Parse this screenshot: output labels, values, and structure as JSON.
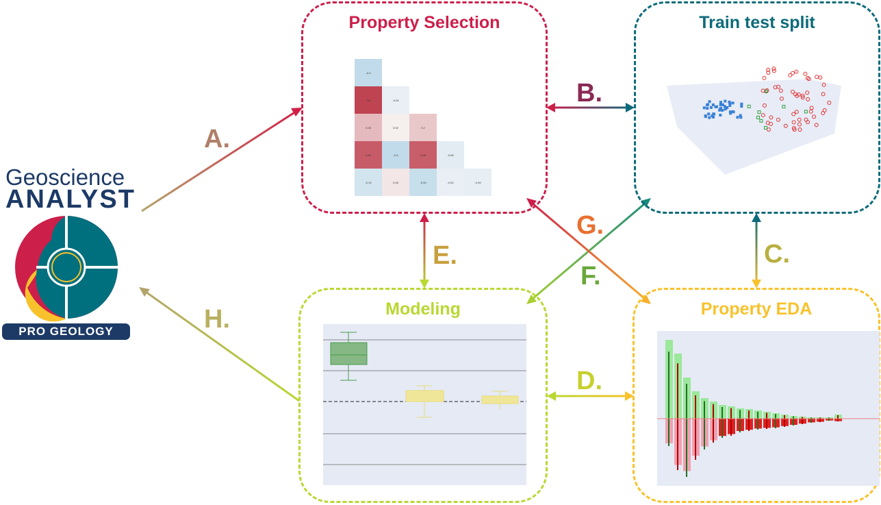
{
  "logo": {
    "line1": "Geoscience",
    "line2": "ANALYST",
    "badge": "PRO GEOLOGY"
  },
  "panels": {
    "property_selection": {
      "title": "Property Selection",
      "color": "#cc1f4a"
    },
    "train_test_split": {
      "title": "Train test split",
      "color": "#0c6b7a"
    },
    "modeling": {
      "title": "Modeling",
      "color": "#b8d832"
    },
    "property_eda": {
      "title": "Property EDA",
      "color": "#f8c22c"
    }
  },
  "arrows": {
    "a": "A.",
    "b": "B.",
    "c": "C.",
    "d": "D.",
    "e": "E.",
    "f": "F.",
    "g": "G.",
    "h": "H."
  },
  "heatmap": {
    "rows": [
      [
        "-0.3"
      ],
      [
        "0.8",
        "-0.04"
      ],
      [
        "0.26",
        "0.02",
        "0.2"
      ],
      [
        "0.69",
        "-0.3",
        "0.68",
        "-0.08"
      ],
      [
        "-0.19",
        "0.06",
        "-0.26",
        "-0.04",
        "-0.05"
      ]
    ]
  }
}
